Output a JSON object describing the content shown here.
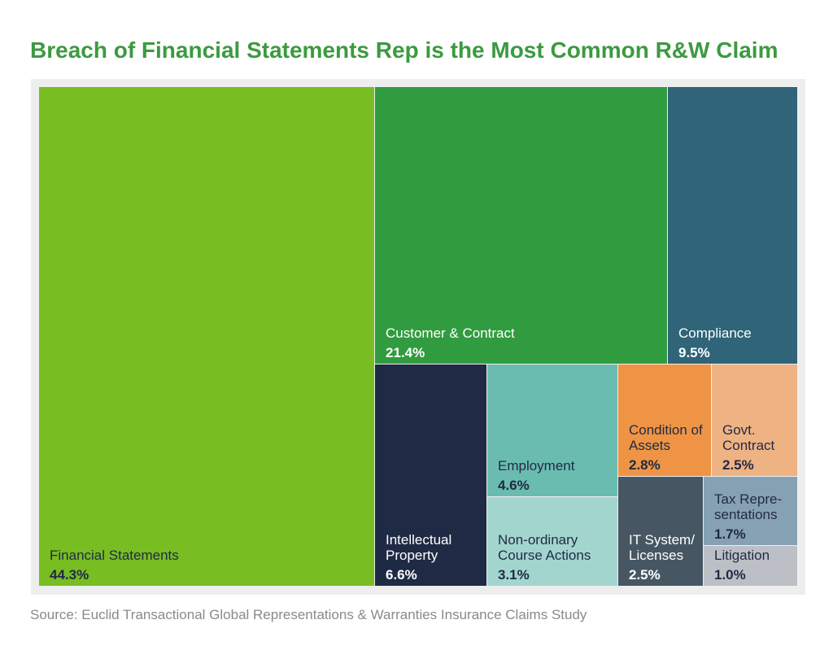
{
  "chart_data": {
    "type": "treemap",
    "title": "Breach of Financial Statements Rep is the Most Common R&W Claim",
    "source": "Source: Euclid Transactional Global Representations & Warranties Insurance Claims Study",
    "categories": [
      "Financial Statements",
      "Customer & Contract",
      "Compliance",
      "Intellectual Property",
      "Employment",
      "Non-ordinary Course Actions",
      "Condition of Assets",
      "Govt. Contract",
      "IT System/ Licenses",
      "Tax Repre-sentations",
      "Litigation"
    ],
    "values": [
      44.3,
      21.4,
      9.5,
      6.6,
      4.6,
      3.1,
      2.8,
      2.5,
      2.5,
      1.7,
      1.0
    ],
    "value_labels": [
      "44.3%",
      "21.4%",
      "9.5%",
      "6.6%",
      "4.6%",
      "3.1%",
      "2.8%",
      "2.5%",
      "2.5%",
      "1.7%",
      "1.0%"
    ],
    "colors": [
      "#78bd22",
      "#319b3f",
      "#2f6479",
      "#1f2a44",
      "#6bbcb0",
      "#a3d5cf",
      "#ef9445",
      "#efb283",
      "#465763",
      "#87a1b4",
      "#bcc0c6"
    ]
  }
}
